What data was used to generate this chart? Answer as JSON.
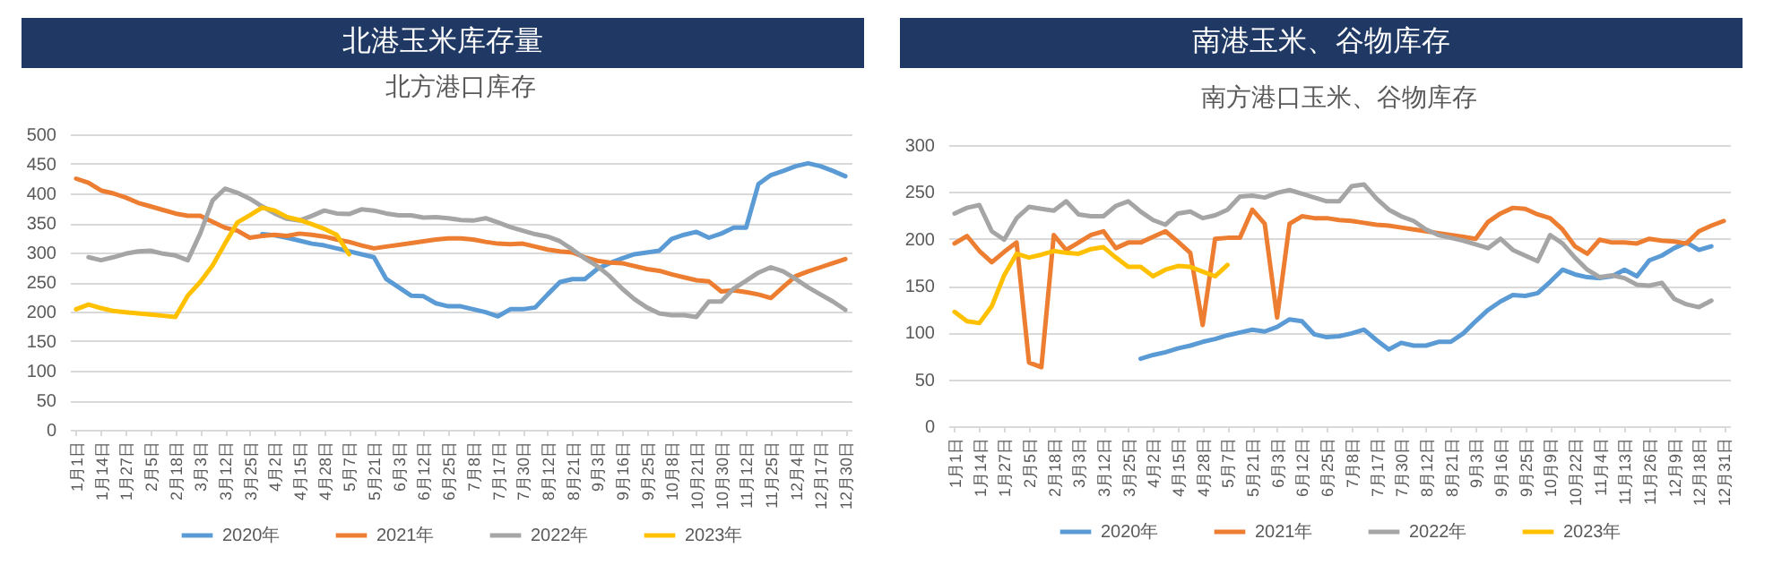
{
  "chart_data": [
    {
      "type": "line",
      "title": "北港玉米库存量",
      "subtitle": "北方港口库存",
      "categories": [
        "1月1日",
        null,
        "1月14日",
        null,
        "1月27日",
        null,
        "2月5日",
        null,
        "2月18日",
        null,
        "3月3日",
        null,
        "3月12日",
        null,
        "3月25日",
        null,
        "4月2日",
        null,
        "4月15日",
        null,
        "4月28日",
        null,
        "5月7日",
        null,
        "5月21日",
        null,
        "6月3日",
        null,
        "6月12日",
        null,
        "6月25日",
        null,
        "7月8日",
        null,
        "7月17日",
        null,
        "7月30日",
        null,
        "8月12日",
        null,
        "8月21日",
        null,
        "9月3日",
        null,
        "9月16日",
        null,
        "9月25日",
        null,
        "10月8日",
        null,
        "10月21日",
        null,
        "10月30日",
        null,
        "11月12日",
        null,
        "11月25日",
        null,
        "12月4日",
        null,
        "12月17日",
        null,
        "12月30日"
      ],
      "series": [
        {
          "name": "2020年",
          "color": "#5b9bd5",
          "values": [
            null,
            null,
            null,
            null,
            null,
            null,
            null,
            null,
            null,
            null,
            null,
            null,
            null,
            null,
            null,
            331,
            329,
            325,
            320,
            315,
            312,
            307,
            302,
            297,
            292,
            255,
            241,
            227,
            226,
            214,
            209,
            209,
            204,
            199,
            192,
            204,
            204,
            207,
            229,
            250,
            255,
            255,
            272,
            282,
            290,
            297,
            300,
            303,
            323,
            330,
            335,
            325,
            332,
            342,
            342,
            416,
            431,
            438,
            446,
            451,
            446,
            438,
            429
          ]
        },
        {
          "name": "2021年",
          "color": "#ed7d31",
          "values": [
            425,
            418,
            405,
            400,
            393,
            384,
            378,
            372,
            366,
            362,
            362,
            352,
            342,
            337,
            325,
            328,
            330,
            328,
            332,
            330,
            327,
            322,
            318,
            312,
            307,
            310,
            313,
            316,
            319,
            322,
            324,
            324,
            322,
            318,
            315,
            314,
            315,
            310,
            305,
            302,
            300,
            292,
            286,
            283,
            282,
            277,
            272,
            269,
            263,
            258,
            253,
            251,
            234,
            236,
            233,
            229,
            223,
            242,
            260,
            268,
            275,
            282,
            289
          ]
        },
        {
          "name": "2022年",
          "color": "#a5a5a5",
          "values": [
            null,
            292,
            287,
            292,
            298,
            302,
            303,
            298,
            295,
            287,
            332,
            388,
            408,
            401,
            391,
            378,
            366,
            357,
            354,
            362,
            371,
            366,
            365,
            373,
            371,
            366,
            363,
            363,
            359,
            360,
            358,
            355,
            354,
            358,
            351,
            343,
            337,
            331,
            327,
            319,
            305,
            290,
            277,
            260,
            239,
            221,
            207,
            197,
            194,
            194,
            191,
            217,
            217,
            239,
            252,
            266,
            275,
            268,
            255,
            241,
            229,
            217,
            203
          ]
        },
        {
          "name": "2023年",
          "color": "#ffc000",
          "values": [
            204,
            212,
            206,
            201,
            199,
            197,
            195,
            193,
            191,
            227,
            250,
            278,
            315,
            351,
            363,
            376,
            371,
            360,
            355,
            348,
            340,
            330,
            297,
            null,
            null,
            null,
            null,
            null,
            null,
            null,
            null,
            null,
            null,
            null,
            null,
            null,
            null,
            null,
            null,
            null,
            null,
            null,
            null,
            null,
            null,
            null,
            null,
            null,
            null,
            null,
            null,
            null,
            null,
            null,
            null,
            null,
            null,
            null,
            null,
            null,
            null,
            null,
            null
          ]
        }
      ],
      "ylim": [
        0,
        500
      ],
      "yticks": [
        0,
        50,
        100,
        150,
        200,
        250,
        300,
        350,
        400,
        450,
        500
      ],
      "grid": "y",
      "legend": "bottom"
    },
    {
      "type": "line",
      "title": "南港玉米、谷物库存",
      "subtitle": "南方港口玉米、谷物库存",
      "categories": [
        "1月1日",
        null,
        "1月14日",
        null,
        "1月27日",
        null,
        "2月5日",
        null,
        "2月18日",
        null,
        "3月3日",
        null,
        "3月12日",
        null,
        "3月25日",
        null,
        "4月2日",
        null,
        "4月15日",
        null,
        "4月28日",
        null,
        "5月7日",
        null,
        "5月21日",
        null,
        "6月3日",
        null,
        "6月12日",
        null,
        "6月25日",
        null,
        "7月8日",
        null,
        "7月17日",
        null,
        "7月30日",
        null,
        "8月12日",
        null,
        "8月21日",
        null,
        "9月3日",
        null,
        "9月16日",
        null,
        "9月25日",
        null,
        "10月9日",
        null,
        "10月22日",
        null,
        "11月4日",
        null,
        "11月13日",
        null,
        "11月26日",
        null,
        "12月9日",
        null,
        "12月18日",
        null,
        "12月31日"
      ],
      "series": [
        {
          "name": "2020年",
          "color": "#5b9bd5",
          "values": [
            null,
            null,
            null,
            null,
            null,
            null,
            null,
            null,
            null,
            null,
            null,
            null,
            null,
            null,
            null,
            72,
            76,
            79,
            83,
            86,
            90,
            93,
            97,
            100,
            103,
            101,
            106,
            114,
            112,
            98,
            95,
            96,
            99,
            103,
            92,
            82,
            89,
            86,
            86,
            90,
            90,
            99,
            112,
            124,
            133,
            140,
            139,
            142,
            154,
            167,
            162,
            159,
            158,
            160,
            167,
            160,
            177,
            182,
            190,
            196,
            188,
            192,
            null
          ]
        },
        {
          "name": "2021年",
          "color": "#ed7d31",
          "values": [
            195,
            203,
            187,
            175,
            186,
            196,
            68,
            63,
            204,
            188,
            196,
            204,
            208,
            190,
            196,
            196,
            202,
            208,
            197,
            185,
            108,
            200,
            201,
            201,
            231,
            216,
            116,
            216,
            224,
            222,
            222,
            220,
            219,
            217,
            215,
            214,
            212,
            210,
            208,
            206,
            204,
            202,
            200,
            218,
            227,
            233,
            232,
            226,
            222,
            210,
            192,
            184,
            199,
            196,
            196,
            195,
            200,
            198,
            197,
            195,
            208,
            214,
            219
          ]
        },
        {
          "name": "2022年",
          "color": "#a5a5a5",
          "values": [
            227,
            233,
            236,
            208,
            199,
            222,
            234,
            232,
            230,
            240,
            226,
            224,
            224,
            235,
            240,
            229,
            220,
            215,
            227,
            229,
            222,
            225,
            231,
            245,
            246,
            244,
            249,
            252,
            248,
            244,
            240,
            240,
            256,
            258,
            243,
            231,
            224,
            219,
            210,
            204,
            201,
            198,
            194,
            190,
            200,
            188,
            182,
            176,
            204,
            195,
            180,
            167,
            159,
            161,
            158,
            151,
            150,
            153,
            136,
            130,
            127,
            134,
            null
          ]
        },
        {
          "name": "2023年",
          "color": "#ffc000",
          "values": [
            122,
            112,
            110,
            128,
            161,
            184,
            180,
            183,
            187,
            185,
            184,
            189,
            191,
            180,
            170,
            170,
            160,
            167,
            171,
            170,
            165,
            160,
            172,
            null,
            null,
            null,
            null,
            null,
            null,
            null,
            null,
            null,
            null,
            null,
            null,
            null,
            null,
            null,
            null,
            null,
            null,
            null,
            null,
            null,
            null,
            null,
            null,
            null,
            null,
            null,
            null,
            null,
            null,
            null,
            null,
            null,
            null,
            null,
            null,
            null,
            null,
            null,
            null
          ]
        }
      ],
      "ylim": [
        0,
        300
      ],
      "yticks": [
        0,
        50,
        100,
        150,
        200,
        250,
        300
      ],
      "grid": "y",
      "legend": "bottom"
    }
  ]
}
